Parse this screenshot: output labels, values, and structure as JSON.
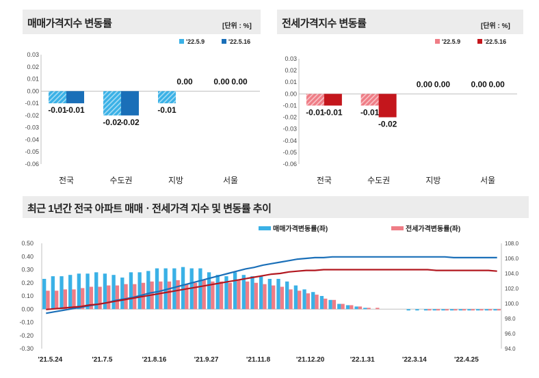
{
  "colors": {
    "sale_light": "#3ab1e6",
    "sale_dark": "#1a6fb8",
    "jeonse_light": "#ef7d86",
    "jeonse_dark": "#c4161c",
    "sale_line": "#1a6fb8",
    "jeonse_line": "#b2171f"
  },
  "chart_data": [
    {
      "type": "bar",
      "title": "매매가격지수 변동률",
      "unit": "[단위 : %]",
      "categories": [
        "전국",
        "수도권",
        "지방",
        "서울"
      ],
      "series": [
        {
          "name": "'22.5.9",
          "values": [
            -0.01,
            -0.02,
            -0.01,
            0.0
          ],
          "labels": [
            "-0.01",
            "-0.02",
            "-0.01",
            "0.00"
          ]
        },
        {
          "name": "'22.5.16",
          "values": [
            -0.01,
            -0.02,
            0.0,
            0.0
          ],
          "labels": [
            "-0.01",
            "-0.02",
            "0.00",
            "0.00"
          ]
        }
      ],
      "ylim": [
        -0.06,
        0.03
      ],
      "yticks": [
        "0.03",
        "0.02",
        "0.01",
        "0.00",
        "-0.01",
        "-0.02",
        "-0.03",
        "-0.04",
        "-0.05",
        "-0.06"
      ]
    },
    {
      "type": "bar",
      "title": "전세가격지수 변동률",
      "unit": "[단위 : %]",
      "categories": [
        "전국",
        "수도권",
        "지방",
        "서울"
      ],
      "series": [
        {
          "name": "'22.5.9",
          "values": [
            -0.01,
            -0.01,
            0.0,
            0.0
          ],
          "labels": [
            "-0.01",
            "-0.01",
            "0.00",
            "0.00"
          ]
        },
        {
          "name": "'22.5.16",
          "values": [
            -0.01,
            -0.02,
            0.0,
            0.0
          ],
          "labels": [
            "-0.01",
            "-0.02",
            "0.00",
            "0.00"
          ]
        }
      ],
      "ylim": [
        -0.06,
        0.03
      ],
      "yticks": [
        "0.03",
        "0.02",
        "0.01",
        "0.00",
        "-0.01",
        "-0.02",
        "-0.03",
        "-0.04",
        "-0.05",
        "-0.06"
      ]
    },
    {
      "type": "bar+line",
      "title": "최근 1년간 전국 아파트 매매ㆍ전세가격 지수 및 변동률 추이",
      "legend": [
        "매매가격변동률(좌)",
        "전세가격변동률(좌)"
      ],
      "ylim_left": [
        -0.3,
        0.5
      ],
      "yticks_left": [
        "0.50",
        "0.40",
        "0.30",
        "0.20",
        "0.10",
        "0.00",
        "-0.10",
        "-0.20",
        "-0.30"
      ],
      "ylim_right": [
        94.0,
        108.0
      ],
      "yticks_right": [
        "108.0",
        "106.0",
        "104.0",
        "102.0",
        "100.0",
        "98.0",
        "96.0",
        "94.0"
      ],
      "xticks": [
        "'21.5.24",
        "'21.7.5",
        "'21.8.16",
        "'21.9.27",
        "'21.11.8",
        "'21.12.20",
        "'22.1.31",
        "'22.3.14",
        "'22.4.25"
      ],
      "sale_rate": [
        0.23,
        0.25,
        0.25,
        0.26,
        0.27,
        0.27,
        0.28,
        0.27,
        0.26,
        0.24,
        0.28,
        0.28,
        0.29,
        0.31,
        0.31,
        0.31,
        0.32,
        0.31,
        0.31,
        0.28,
        0.26,
        0.25,
        0.28,
        0.26,
        0.25,
        0.25,
        0.23,
        0.23,
        0.21,
        0.18,
        0.15,
        0.13,
        0.1,
        0.07,
        0.04,
        0.03,
        0.02,
        0.01,
        0.0,
        0.0,
        0.0,
        0.0,
        -0.01,
        -0.01,
        -0.01,
        -0.01,
        -0.01,
        -0.01,
        -0.01,
        -0.01,
        -0.01,
        -0.01,
        -0.01
      ],
      "jeonse_rate": [
        0.14,
        0.14,
        0.15,
        0.15,
        0.16,
        0.17,
        0.17,
        0.18,
        0.18,
        0.19,
        0.19,
        0.2,
        0.21,
        0.21,
        0.21,
        0.22,
        0.19,
        0.2,
        0.22,
        0.21,
        0.21,
        0.2,
        0.22,
        0.21,
        0.2,
        0.19,
        0.18,
        0.17,
        0.15,
        0.14,
        0.12,
        0.11,
        0.08,
        0.07,
        0.04,
        0.03,
        0.02,
        0.01,
        0.01,
        0.0,
        0.0,
        0.0,
        0.0,
        0.0,
        -0.01,
        -0.01,
        -0.01,
        -0.01,
        -0.01,
        -0.01,
        -0.01,
        -0.01,
        -0.01
      ],
      "sale_index": [
        98.7,
        98.9,
        99.1,
        99.3,
        99.5,
        99.7,
        99.9,
        100.1,
        100.4,
        100.6,
        100.8,
        101.1,
        101.4,
        101.6,
        101.9,
        102.2,
        102.5,
        102.8,
        103.1,
        103.4,
        103.7,
        104.0,
        104.3,
        104.6,
        104.8,
        105.1,
        105.3,
        105.5,
        105.7,
        105.9,
        106.0,
        106.1,
        106.1,
        106.2,
        106.2,
        106.2,
        106.2,
        106.2,
        106.2,
        106.2,
        106.2,
        106.2,
        106.2,
        106.2,
        106.2,
        106.2,
        106.2,
        106.1,
        106.1,
        106.1,
        106.1,
        106.1,
        106.1
      ],
      "jeonse_index": [
        99.2,
        99.3,
        99.4,
        99.5,
        99.6,
        99.8,
        99.9,
        100.1,
        100.3,
        100.5,
        100.7,
        100.9,
        101.1,
        101.3,
        101.5,
        101.7,
        101.9,
        102.1,
        102.3,
        102.5,
        102.7,
        102.9,
        103.1,
        103.3,
        103.5,
        103.7,
        103.9,
        104.0,
        104.2,
        104.3,
        104.4,
        104.4,
        104.5,
        104.5,
        104.5,
        104.5,
        104.5,
        104.5,
        104.5,
        104.5,
        104.5,
        104.5,
        104.5,
        104.5,
        104.5,
        104.4,
        104.4,
        104.4,
        104.4,
        104.4,
        104.4,
        104.4,
        104.3
      ]
    }
  ]
}
